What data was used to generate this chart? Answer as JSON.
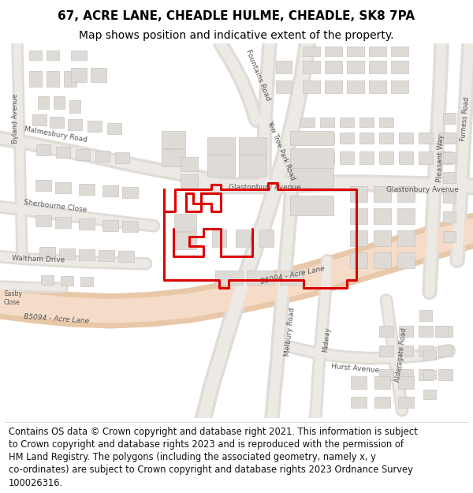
{
  "title_line1": "67, ACRE LANE, CHEADLE HULME, CHEADLE, SK8 7PA",
  "title_line2": "Map shows position and indicative extent of the property.",
  "footer_lines": [
    "Contains OS data © Crown copyright and database right 2021. This information is subject",
    "to Crown copyright and database rights 2023 and is reproduced with the permission of",
    "HM Land Registry. The polygons (including the associated geometry, namely x, y",
    "co-ordinates) are subject to Crown copyright and database rights 2023 Ordnance Survey",
    "100026316."
  ],
  "title_fontsize": 11,
  "subtitle_fontsize": 10,
  "footer_fontsize": 8.3,
  "map_bg": "#f2f0ed",
  "road_major_color": "#f5cdb0",
  "road_minor_color": "#e8e4e0",
  "building_color": "#dedad6",
  "building_edge": "#c8c4c0",
  "red_color": "#dd0000",
  "red_lw": 2.2,
  "title_bg": "#ffffff",
  "footer_bg": "#ffffff",
  "text_color": "#444444",
  "label_color": "#555555"
}
